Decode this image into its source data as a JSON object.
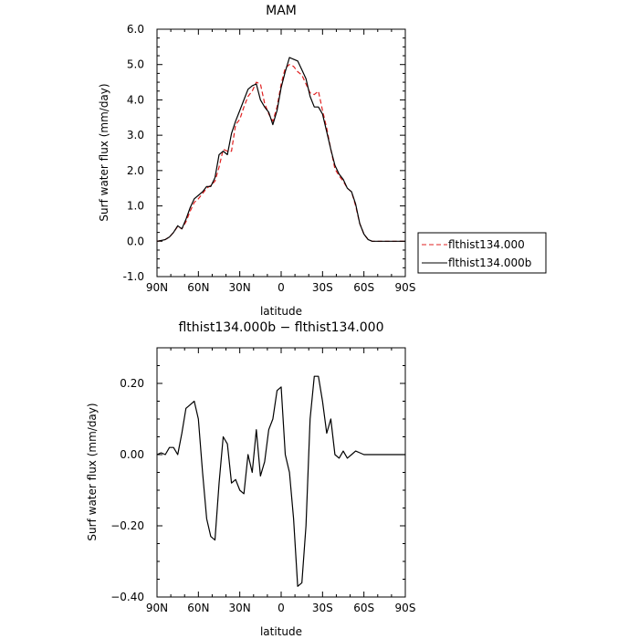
{
  "chart_data": [
    {
      "type": "line",
      "title": "MAM",
      "xlabel": "latitude",
      "ylabel": "Surf water flux (mm/day)",
      "xlim": [
        90,
        -90
      ],
      "ylim": [
        -1.0,
        6.0
      ],
      "x_ticks": [
        90,
        60,
        30,
        0,
        -30,
        -60,
        -90
      ],
      "x_tick_labels": [
        "90N",
        "60N",
        "30N",
        "0",
        "30S",
        "60S",
        "90S"
      ],
      "y_ticks": [
        -1.0,
        0.0,
        1.0,
        2.0,
        3.0,
        4.0,
        5.0,
        6.0
      ],
      "y_tick_labels": [
        "-1.0",
        "0.0",
        "1.0",
        "2.0",
        "3.0",
        "4.0",
        "5.0",
        "6.0"
      ],
      "legend_position": "outside-right",
      "series": [
        {
          "name": "flthist134.000",
          "color": "#e02020",
          "dash": "dashed",
          "x": [
            90,
            87,
            84,
            81,
            78,
            75,
            72,
            69,
            66,
            63,
            60,
            57,
            54,
            51,
            48,
            45,
            42,
            39,
            36,
            33,
            30,
            27,
            24,
            21,
            18,
            15,
            12,
            9,
            6,
            3,
            0,
            -3,
            -6,
            -9,
            -12,
            -15,
            -18,
            -21,
            -24,
            -27,
            -30,
            -33,
            -36,
            -39,
            -42,
            -45,
            -48,
            -51,
            -54,
            -57,
            -60,
            -63,
            -66,
            -69,
            -72,
            -75,
            -78,
            -81,
            -84,
            -87,
            -90
          ],
          "y": [
            0.0,
            0.02,
            0.05,
            0.12,
            0.25,
            0.42,
            0.35,
            0.55,
            0.85,
            1.1,
            1.2,
            1.35,
            1.5,
            1.58,
            1.7,
            2.1,
            2.6,
            2.55,
            2.55,
            3.3,
            3.45,
            3.8,
            4.1,
            4.25,
            4.5,
            4.45,
            3.9,
            3.6,
            3.4,
            3.8,
            4.45,
            4.9,
            5.0,
            4.95,
            4.8,
            4.7,
            4.45,
            4.2,
            4.15,
            4.25,
            3.7,
            3.2,
            2.6,
            2.05,
            1.85,
            1.7,
            1.5,
            1.4,
            1.0,
            0.5,
            0.2,
            0.05,
            0.0,
            0.0,
            0.0,
            0.0,
            0.0,
            0.0,
            0.0,
            0.0,
            0.0
          ]
        },
        {
          "name": "flthist134.000b",
          "color": "#000000",
          "dash": "solid",
          "x": [
            90,
            87,
            84,
            81,
            78,
            75,
            72,
            69,
            66,
            63,
            60,
            57,
            54,
            51,
            48,
            45,
            42,
            39,
            36,
            33,
            30,
            27,
            24,
            21,
            18,
            15,
            12,
            9,
            6,
            3,
            0,
            -3,
            -6,
            -9,
            -12,
            -15,
            -18,
            -21,
            -24,
            -27,
            -30,
            -33,
            -36,
            -39,
            -42,
            -45,
            -48,
            -51,
            -54,
            -57,
            -60,
            -63,
            -66,
            -69,
            -72,
            -75,
            -78,
            -81,
            -84,
            -87,
            -90
          ],
          "y": [
            0.0,
            0.02,
            0.05,
            0.12,
            0.25,
            0.44,
            0.35,
            0.62,
            0.95,
            1.2,
            1.3,
            1.4,
            1.55,
            1.55,
            1.8,
            2.45,
            2.55,
            2.45,
            3.05,
            3.4,
            3.7,
            4.0,
            4.3,
            4.4,
            4.45,
            4.0,
            3.8,
            3.65,
            3.3,
            3.7,
            4.35,
            4.8,
            5.2,
            5.15,
            5.1,
            4.85,
            4.6,
            4.1,
            3.8,
            3.8,
            3.6,
            3.1,
            2.6,
            2.15,
            1.9,
            1.75,
            1.5,
            1.4,
            1.05,
            0.5,
            0.2,
            0.05,
            0.0,
            0.0,
            0.0,
            0.0,
            0.0,
            0.0,
            0.0,
            0.0,
            0.0
          ]
        }
      ]
    },
    {
      "type": "line",
      "title": "flthist134.000b − flthist134.000",
      "xlabel": "latitude",
      "ylabel": "Surf water flux (mm/day)",
      "xlim": [
        90,
        -90
      ],
      "ylim": [
        -0.4,
        0.3
      ],
      "x_ticks": [
        90,
        60,
        30,
        0,
        -30,
        -60,
        -90
      ],
      "x_tick_labels": [
        "90N",
        "60N",
        "30N",
        "0",
        "30S",
        "60S",
        "90S"
      ],
      "y_ticks": [
        -0.4,
        -0.2,
        0.0,
        0.2
      ],
      "y_tick_labels": [
        "−0.40",
        "−0.20",
        "0.00",
        "0.20"
      ],
      "series": [
        {
          "color": "#000000",
          "dash": "solid",
          "x": [
            90,
            87,
            84,
            81,
            78,
            75,
            72,
            69,
            66,
            63,
            60,
            57,
            54,
            51,
            48,
            45,
            42,
            39,
            36,
            33,
            30,
            27,
            24,
            21,
            18,
            15,
            12,
            9,
            6,
            3,
            0,
            -3,
            -6,
            -9,
            -12,
            -15,
            -18,
            -21,
            -24,
            -27,
            -30,
            -33,
            -36,
            -39,
            -42,
            -45,
            -48,
            -51,
            -54,
            -57,
            -60,
            -63,
            -66,
            -69,
            -72,
            -75,
            -78,
            -81,
            -84,
            -87,
            -90
          ],
          "y": [
            0.0,
            0.005,
            0.0,
            0.02,
            0.02,
            0.0,
            0.06,
            0.13,
            0.14,
            0.15,
            0.1,
            -0.05,
            -0.18,
            -0.23,
            -0.24,
            -0.08,
            0.05,
            0.03,
            -0.08,
            -0.07,
            -0.1,
            -0.11,
            0.0,
            -0.05,
            0.07,
            -0.06,
            -0.02,
            0.07,
            0.1,
            0.18,
            0.19,
            0.0,
            -0.05,
            -0.18,
            -0.37,
            -0.36,
            -0.2,
            0.1,
            0.22,
            0.22,
            0.15,
            0.06,
            0.1,
            0.0,
            -0.01,
            0.01,
            -0.01,
            0.0,
            0.01,
            0.005,
            0.0,
            0.0,
            0.0,
            0.0,
            0.0,
            0.0,
            0.0,
            0.0,
            0.0,
            0.0,
            0.0
          ]
        }
      ]
    }
  ]
}
